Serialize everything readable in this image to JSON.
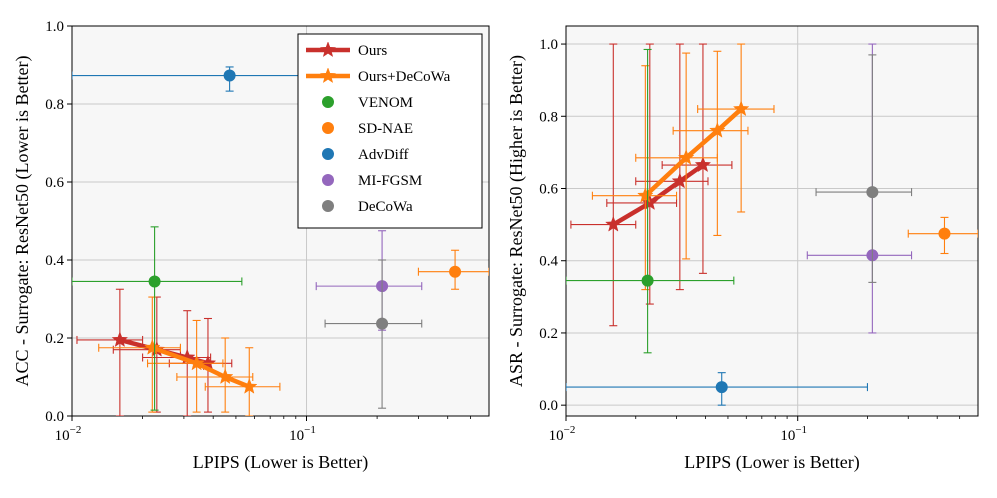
{
  "chart_data": [
    {
      "type": "scatter",
      "xscale": "log",
      "xlabel": "LPIPS (Lower is Better)",
      "ylabel": "ACC - Surrogate: ResNet50 (Lower is Better)",
      "xlim": [
        0.01,
        0.6
      ],
      "ylim": [
        0.0,
        1.0
      ],
      "xticks": [
        {
          "value": 0.01,
          "base": "10",
          "exp": "−2"
        },
        {
          "value": 0.1,
          "base": "10",
          "exp": "−1"
        }
      ],
      "yticks": [
        "0.0",
        "0.2",
        "0.4",
        "0.6",
        "0.8",
        "1.0"
      ],
      "grid": true,
      "legend": {
        "placement": "upper-right",
        "entries": [
          {
            "label": "Ours",
            "color": "#c9302c",
            "marker": "star",
            "line": true
          },
          {
            "label": "Ours+DeCoWa",
            "color": "#ff7f0e",
            "marker": "star",
            "line": true
          },
          {
            "label": "VENOM",
            "color": "#2ca02c",
            "marker": "circle",
            "line": false
          },
          {
            "label": "SD-NAE",
            "color": "#ff7f0e",
            "marker": "circle",
            "line": false
          },
          {
            "label": "AdvDiff",
            "color": "#1f77b4",
            "marker": "circle",
            "line": false
          },
          {
            "label": "MI-FGSM",
            "color": "#9467bd",
            "marker": "circle",
            "line": false
          },
          {
            "label": "DeCoWa",
            "color": "#7f7f7f",
            "marker": "circle",
            "line": false
          }
        ]
      },
      "series": [
        {
          "name": "Ours",
          "color": "#c9302c",
          "marker": "star",
          "line": true,
          "points": [
            {
              "x": 0.016,
              "y": 0.195,
              "xerr": [
                0.0055,
                0.004
              ],
              "yerr": [
                0.195,
                0.13
              ]
            },
            {
              "x": 0.023,
              "y": 0.17,
              "xerr": [
                0.008,
                0.006
              ],
              "yerr": [
                0.16,
                0.135
              ]
            },
            {
              "x": 0.031,
              "y": 0.15,
              "xerr": [
                0.011,
                0.008
              ],
              "yerr": [
                0.15,
                0.12
              ]
            },
            {
              "x": 0.038,
              "y": 0.135,
              "xerr": [
                0.012,
                0.01
              ],
              "yerr": [
                0.125,
                0.115
              ]
            }
          ]
        },
        {
          "name": "Ours+DeCoWa",
          "color": "#ff7f0e",
          "marker": "star",
          "line": true,
          "points": [
            {
              "x": 0.022,
              "y": 0.175,
              "xerr": [
                0.009,
                0.007
              ],
              "yerr": [
                0.165,
                0.13
              ]
            },
            {
              "x": 0.034,
              "y": 0.135,
              "xerr": [
                0.013,
                0.01
              ],
              "yerr": [
                0.125,
                0.11
              ]
            },
            {
              "x": 0.045,
              "y": 0.1,
              "xerr": [
                0.017,
                0.014
              ],
              "yerr": [
                0.09,
                0.1
              ]
            },
            {
              "x": 0.057,
              "y": 0.075,
              "xerr": [
                0.02,
                0.02
              ],
              "yerr": [
                0.075,
                0.1
              ]
            }
          ]
        },
        {
          "name": "VENOM",
          "color": "#2ca02c",
          "marker": "circle",
          "line": false,
          "points": [
            {
              "x": 0.0225,
              "y": 0.345,
              "xerr": [
                0.0125,
                0.0305
              ],
              "yerr": [
                0.33,
                0.14
              ]
            }
          ]
        },
        {
          "name": "SD-NAE",
          "color": "#ff7f0e",
          "marker": "circle",
          "line": false,
          "points": [
            {
              "x": 0.43,
              "y": 0.37,
              "xerr": [
                0.13,
                0.17
              ],
              "yerr": [
                0.045,
                0.055
              ]
            }
          ]
        },
        {
          "name": "AdvDiff",
          "color": "#1f77b4",
          "marker": "circle",
          "line": false,
          "points": [
            {
              "x": 0.047,
              "y": 0.873,
              "xerr": [
                0.037,
                0.153
              ],
              "yerr": [
                0.04,
                0.022
              ]
            }
          ]
        },
        {
          "name": "MI-FGSM",
          "color": "#9467bd",
          "marker": "circle",
          "line": false,
          "points": [
            {
              "x": 0.21,
              "y": 0.333,
              "xerr": [
                0.1,
                0.1
              ],
              "yerr": [
                0.113,
                0.142
              ]
            }
          ]
        },
        {
          "name": "DeCoWa",
          "color": "#7f7f7f",
          "marker": "circle",
          "line": false,
          "points": [
            {
              "x": 0.21,
              "y": 0.237,
              "xerr": [
                0.09,
                0.1
              ],
              "yerr": [
                0.217,
                0.163
              ]
            }
          ]
        }
      ]
    },
    {
      "type": "scatter",
      "xscale": "log",
      "xlabel": "LPIPS (Lower is Better)",
      "ylabel": "ASR - Surrogate: ResNet50 (Higher is Better)",
      "xlim": [
        0.01,
        0.6
      ],
      "ylim": [
        -0.03,
        1.05
      ],
      "xticks": [
        {
          "value": 0.01,
          "base": "10",
          "exp": "−2"
        },
        {
          "value": 0.1,
          "base": "10",
          "exp": "−1"
        }
      ],
      "yticks": [
        "0.0",
        "0.2",
        "0.4",
        "0.6",
        "0.8",
        "1.0"
      ],
      "grid": true,
      "series": [
        {
          "name": "Ours",
          "color": "#c9302c",
          "marker": "star",
          "line": true,
          "points": [
            {
              "x": 0.016,
              "y": 0.5,
              "xerr": [
                0.0055,
                0.004
              ],
              "yerr": [
                0.28,
                0.5
              ]
            },
            {
              "x": 0.023,
              "y": 0.56,
              "xerr": [
                0.008,
                0.007
              ],
              "yerr": [
                0.28,
                0.44
              ]
            },
            {
              "x": 0.031,
              "y": 0.62,
              "xerr": [
                0.011,
                0.01
              ],
              "yerr": [
                0.3,
                0.38
              ]
            },
            {
              "x": 0.039,
              "y": 0.665,
              "xerr": [
                0.013,
                0.013
              ],
              "yerr": [
                0.3,
                0.335
              ]
            }
          ]
        },
        {
          "name": "Ours+DeCoWa",
          "color": "#ff7f0e",
          "marker": "star",
          "line": true,
          "points": [
            {
              "x": 0.022,
              "y": 0.58,
              "xerr": [
                0.009,
                0.008
              ],
              "yerr": [
                0.26,
                0.36
              ]
            },
            {
              "x": 0.033,
              "y": 0.685,
              "xerr": [
                0.013,
                0.012
              ],
              "yerr": [
                0.28,
                0.29
              ]
            },
            {
              "x": 0.045,
              "y": 0.76,
              "xerr": [
                0.016,
                0.016
              ],
              "yerr": [
                0.29,
                0.22
              ]
            },
            {
              "x": 0.057,
              "y": 0.82,
              "xerr": [
                0.02,
                0.022
              ],
              "yerr": [
                0.285,
                0.18
              ]
            }
          ]
        },
        {
          "name": "VENOM",
          "color": "#2ca02c",
          "marker": "circle",
          "line": false,
          "points": [
            {
              "x": 0.0225,
              "y": 0.345,
              "xerr": [
                0.0125,
                0.0305
              ],
              "yerr": [
                0.2,
                0.64
              ]
            }
          ]
        },
        {
          "name": "SD-NAE",
          "color": "#ff7f0e",
          "marker": "circle",
          "line": false,
          "points": [
            {
              "x": 0.43,
              "y": 0.475,
              "xerr": [
                0.13,
                0.17
              ],
              "yerr": [
                0.055,
                0.045
              ]
            }
          ]
        },
        {
          "name": "AdvDiff",
          "color": "#1f77b4",
          "marker": "circle",
          "line": false,
          "points": [
            {
              "x": 0.047,
              "y": 0.05,
              "xerr": [
                0.037,
                0.153
              ],
              "yerr": [
                0.05,
                0.04
              ]
            }
          ]
        },
        {
          "name": "MI-FGSM",
          "color": "#9467bd",
          "marker": "circle",
          "line": false,
          "points": [
            {
              "x": 0.21,
              "y": 0.415,
              "xerr": [
                0.1,
                0.1
              ],
              "yerr": [
                0.215,
                0.585
              ]
            }
          ]
        },
        {
          "name": "DeCoWa",
          "color": "#7f7f7f",
          "marker": "circle",
          "line": false,
          "points": [
            {
              "x": 0.21,
              "y": 0.59,
              "xerr": [
                0.09,
                0.1
              ],
              "yerr": [
                0.25,
                0.38
              ]
            }
          ]
        }
      ]
    }
  ]
}
